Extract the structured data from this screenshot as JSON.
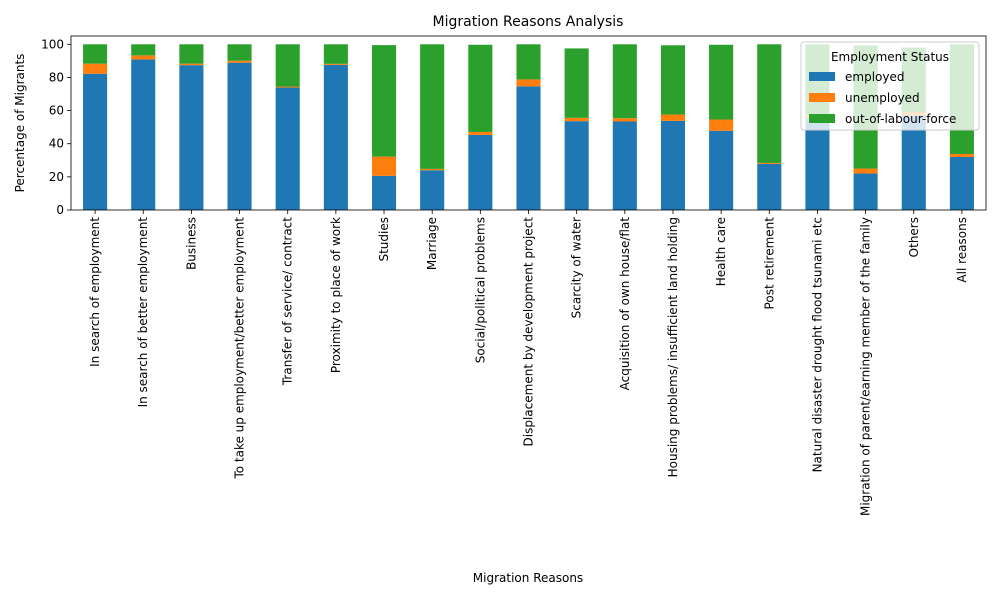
{
  "chart_data": {
    "type": "bar",
    "stacked": true,
    "title": "Migration Reasons Analysis",
    "xlabel": "Migration Reasons",
    "ylabel": "Percentage of Migrants",
    "ylim": [
      0,
      105
    ],
    "yticks": [
      0,
      20,
      40,
      60,
      80,
      100
    ],
    "grid": false,
    "legend": {
      "title": "Employment Status",
      "placement": "top-right"
    },
    "categories": [
      "In search of employment",
      "In search of better employment",
      "Business",
      "To take up employment/better employment",
      "Transfer of service/ contract",
      "Proximity to place of work",
      "Studies",
      "Marriage",
      "Social/political problems",
      "Displacement by development project",
      "Scarcity of water",
      "Acquisition of own house/flat",
      "Housing problems/ insufficient land holding",
      "Health care",
      "Post retirement",
      "Natural disaster drought flood tsunami etc",
      "Migration of parent/earning member of the family",
      "Others",
      "All reasons"
    ],
    "series": [
      {
        "name": "employed",
        "color": "#1f77b4",
        "values": [
          82.2,
          90.8,
          87.4,
          88.9,
          73.9,
          87.6,
          20.6,
          24.0,
          45.3,
          74.6,
          53.6,
          53.4,
          53.8,
          47.8,
          27.8,
          55.4,
          22.0,
          57.0,
          32.0
        ]
      },
      {
        "name": "unemployed",
        "color": "#ff7f0e",
        "values": [
          6.1,
          2.5,
          0.9,
          1.2,
          0.6,
          0.6,
          11.6,
          0.8,
          1.8,
          4.2,
          2.0,
          2.0,
          3.8,
          6.8,
          0.6,
          2.0,
          3.0,
          2.2,
          1.8
        ]
      },
      {
        "name": "out-of-labour-force",
        "color": "#2ca02c",
        "values": [
          11.7,
          6.7,
          11.7,
          9.9,
          25.5,
          11.8,
          67.3,
          75.2,
          52.6,
          21.2,
          41.9,
          44.6,
          41.8,
          45.1,
          71.6,
          42.6,
          74.3,
          38.8,
          66.2
        ]
      }
    ]
  }
}
